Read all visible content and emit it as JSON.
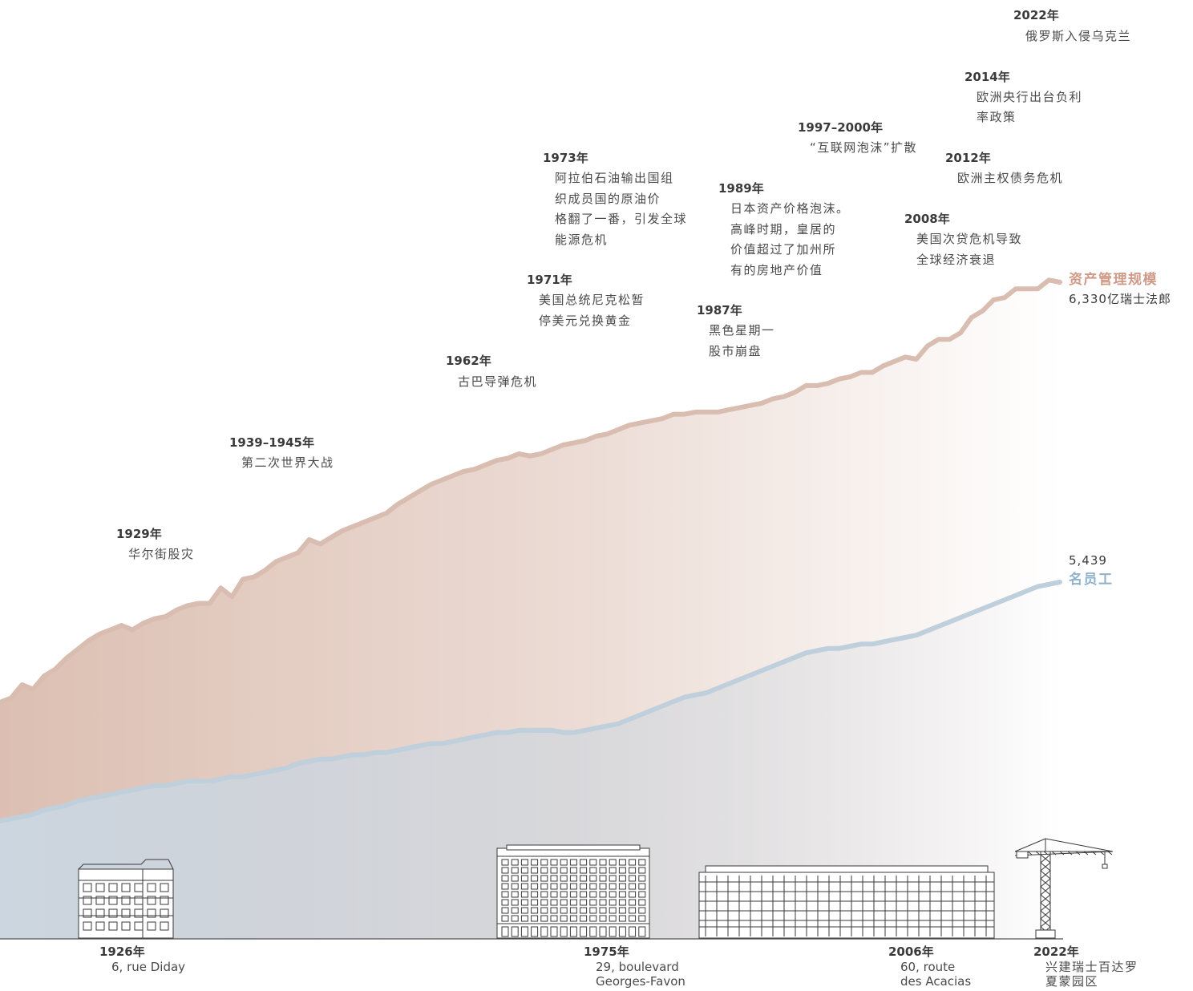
{
  "chart_data": {
    "type": "area",
    "xlim": [
      1926,
      2022
    ],
    "series": [
      {
        "name": "资产管理规模",
        "end_value": "6,330亿瑞士法郎",
        "color": "#d8bdb0",
        "x": [
          1926,
          1927,
          1928,
          1929,
          1930,
          1931,
          1932,
          1933,
          1934,
          1935,
          1936,
          1937,
          1938,
          1939,
          1940,
          1941,
          1942,
          1943,
          1944,
          1945,
          1946,
          1947,
          1948,
          1949,
          1950,
          1951,
          1952,
          1953,
          1954,
          1955,
          1956,
          1957,
          1958,
          1959,
          1960,
          1961,
          1962,
          1963,
          1964,
          1965,
          1966,
          1967,
          1968,
          1969,
          1970,
          1971,
          1972,
          1973,
          1974,
          1975,
          1976,
          1977,
          1978,
          1979,
          1980,
          1981,
          1982,
          1983,
          1984,
          1985,
          1986,
          1987,
          1988,
          1989,
          1990,
          1991,
          1992,
          1993,
          1994,
          1995,
          1996,
          1997,
          1998,
          1999,
          2000,
          2001,
          2002,
          2003,
          2004,
          2005,
          2006,
          2007,
          2008,
          2009,
          2010,
          2011,
          2012,
          2013,
          2014,
          2015,
          2016,
          2017,
          2018,
          2019,
          2020,
          2021,
          2022
        ],
        "values": [
          0,
          2,
          8,
          6,
          12,
          15,
          20,
          24,
          28,
          31,
          33,
          35,
          33,
          36,
          38,
          39,
          42,
          44,
          45,
          45,
          52,
          48,
          56,
          57,
          60,
          64,
          66,
          68,
          74,
          72,
          75,
          78,
          80,
          82,
          84,
          86,
          90,
          93,
          96,
          99,
          101,
          103,
          105,
          106,
          108,
          110,
          111,
          113,
          112,
          113,
          115,
          117,
          118,
          119,
          121,
          122,
          124,
          126,
          127,
          128,
          129,
          131,
          131,
          132,
          132,
          132,
          133,
          134,
          135,
          136,
          138,
          139,
          141,
          144,
          144,
          145,
          147,
          148,
          150,
          150,
          153,
          155,
          157,
          156,
          162,
          165,
          165,
          168,
          175,
          178,
          183,
          184,
          188,
          188,
          188,
          192,
          191
        ]
      },
      {
        "name": "名员工",
        "end_value": "5,439",
        "color": "#bfcfdc",
        "x": [
          1926,
          1927,
          1928,
          1929,
          1930,
          1931,
          1932,
          1933,
          1934,
          1935,
          1936,
          1937,
          1938,
          1939,
          1940,
          1941,
          1942,
          1943,
          1944,
          1945,
          1946,
          1947,
          1948,
          1949,
          1950,
          1951,
          1952,
          1953,
          1954,
          1955,
          1956,
          1957,
          1958,
          1959,
          1960,
          1961,
          1962,
          1963,
          1964,
          1965,
          1966,
          1967,
          1968,
          1969,
          1970,
          1971,
          1972,
          1973,
          1974,
          1975,
          1976,
          1977,
          1978,
          1979,
          1980,
          1981,
          1982,
          1983,
          1984,
          1985,
          1986,
          1987,
          1988,
          1989,
          1990,
          1991,
          1992,
          1993,
          1994,
          1995,
          1996,
          1997,
          1998,
          1999,
          2000,
          2001,
          2002,
          2003,
          2004,
          2005,
          2006,
          2007,
          2008,
          2009,
          2010,
          2011,
          2012,
          2013,
          2014,
          2015,
          2016,
          2017,
          2018,
          2019,
          2020,
          2021,
          2022
        ],
        "values": [
          0,
          1,
          2,
          3,
          5,
          6,
          7,
          9,
          10,
          11,
          12,
          13,
          14,
          15,
          16,
          16,
          17,
          18,
          18,
          18,
          19,
          20,
          20,
          21,
          22,
          23,
          24,
          26,
          27,
          28,
          28,
          29,
          30,
          30,
          31,
          31,
          32,
          33,
          34,
          35,
          35,
          36,
          37,
          38,
          39,
          40,
          40,
          41,
          41,
          41,
          41,
          40,
          40,
          41,
          42,
          43,
          44,
          46,
          48,
          50,
          52,
          54,
          56,
          57,
          58,
          60,
          62,
          64,
          66,
          68,
          70,
          72,
          74,
          76,
          77,
          78,
          78,
          79,
          80,
          80,
          81,
          82,
          83,
          84,
          86,
          88,
          90,
          92,
          94,
          96,
          98,
          100,
          102,
          104,
          106,
          107,
          108
        ]
      }
    ],
    "events": [
      {
        "year": "1929年",
        "text": [
          "华尔街股灾"
        ]
      },
      {
        "year": "1939–1945年",
        "text": [
          "第二次世界大战"
        ]
      },
      {
        "year": "1962年",
        "text": [
          "古巴导弹危机"
        ]
      },
      {
        "year": "1971年",
        "text": [
          "美国总统尼克松暂",
          "停美元兑换黄金"
        ]
      },
      {
        "year": "1973年",
        "text": [
          "阿拉伯石油输出国组",
          "织成员国的原油价",
          "格翻了一番，引发全球",
          "能源危机"
        ]
      },
      {
        "year": "1987年",
        "text": [
          "黑色星期一",
          "股市崩盘"
        ]
      },
      {
        "year": "1989年",
        "text": [
          "日本资产价格泡沫。",
          "高峰时期，皇居的",
          "价值超过了加州所",
          "有的房地产价值"
        ]
      },
      {
        "year": "1997–2000年",
        "text": [
          "“互联网泡沫”扩散"
        ]
      },
      {
        "year": "2008年",
        "text": [
          "美国次贷危机导致",
          "全球经济衰退"
        ]
      },
      {
        "year": "2012年",
        "text": [
          "欧洲主权债务危机"
        ]
      },
      {
        "year": "2014年",
        "text": [
          "欧洲央行出台负利",
          "率政策"
        ]
      },
      {
        "year": "2022年",
        "text": [
          "俄罗斯入侵乌克兰"
        ]
      }
    ],
    "buildings": [
      {
        "year": "1926年",
        "text": [
          "6, rue Diday"
        ]
      },
      {
        "year": "1975年",
        "text": [
          "29, boulevard",
          "Georges-Favon"
        ]
      },
      {
        "year": "2006年",
        "text": [
          "60, route",
          "des Acacias"
        ]
      },
      {
        "year": "2022年",
        "text": [
          "兴建瑞士百达罗",
          "夏蒙园区"
        ]
      }
    ]
  },
  "colors": {
    "aum_line": "#d8bdb0",
    "aum_label": "#d09a88",
    "aum_fill_start": "#dcbfb2",
    "staff_line": "#bfcfdc",
    "staff_label": "#8fb2cb",
    "staff_fill_start": "#cbd6e0",
    "ground": "#555555"
  }
}
